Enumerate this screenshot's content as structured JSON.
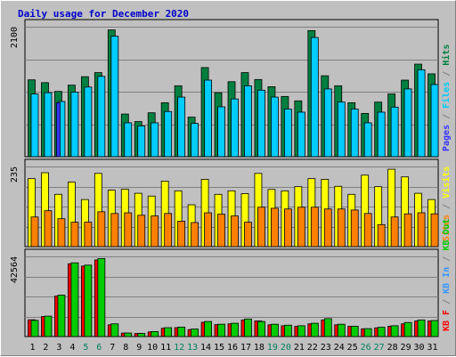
{
  "chart_data": {
    "type": "bar",
    "title": "Daily usage for December 2020",
    "categories": [
      "1",
      "2",
      "3",
      "4",
      "5",
      "6",
      "7",
      "8",
      "9",
      "10",
      "11",
      "12",
      "13",
      "14",
      "15",
      "16",
      "17",
      "18",
      "19",
      "20",
      "21",
      "22",
      "23",
      "24",
      "25",
      "26",
      "27",
      "28",
      "29",
      "30",
      "31"
    ],
    "weekend_days": [
      5,
      6,
      12,
      13,
      19,
      20,
      26,
      27
    ],
    "panels": [
      {
        "id": "hits-files-pages",
        "ymax_label": "2100",
        "ymax": 2100,
        "series": [
          {
            "name": "Hits",
            "color": "#008040",
            "values": [
              1225,
              1180,
              1040,
              1140,
              1275,
              1340,
              2020,
              680,
              560,
              700,
              860,
              1130,
              630,
              1420,
              1020,
              1195,
              1340,
              1230,
              1115,
              960,
              890,
              2010,
              1290,
              1130,
              860,
              690,
              870,
              1000,
              1220,
              1475,
              1320
            ]
          },
          {
            "name": "Files",
            "color": "#00ccff",
            "values": [
              1000,
              1020,
              880,
              1030,
              1110,
              1280,
              1920,
              540,
              490,
              540,
              720,
              950,
              530,
              1220,
              795,
              920,
              1130,
              1060,
              950,
              760,
              710,
              1900,
              1080,
              870,
              760,
              540,
              710,
              790,
              1080,
              1385,
              1150
            ]
          },
          {
            "name": "Pages",
            "color": "#3333ff",
            "values": [
              0,
              0,
              860,
              0,
              0,
              0,
              0,
              0,
              0,
              0,
              0,
              0,
              0,
              0,
              0,
              0,
              0,
              0,
              0,
              0,
              0,
              0,
              0,
              0,
              0,
              0,
              0,
              0,
              0,
              0,
              0
            ]
          }
        ],
        "side_labels": [
          "Pages",
          "Files",
          "Hits"
        ]
      },
      {
        "id": "visits-sites",
        "ymax_label": "235",
        "ymax": 235,
        "series": [
          {
            "name": "Visits",
            "color": "#ffff00",
            "values": [
              195,
              212,
              150,
              185,
              135,
              210,
              162,
              165,
              153,
              145,
              188,
              160,
              120,
              193,
              150,
              160,
              152,
              210,
              164,
              160,
              172,
              195,
              193,
              173,
              150,
              205,
              172,
              222,
              200,
              153,
              135
            ]
          },
          {
            "name": "Sites",
            "color": "#ff8000",
            "values": [
              85,
              103,
              80,
              70,
              70,
              100,
              95,
              97,
              90,
              88,
              95,
              73,
              69,
              97,
              93,
              88,
              70,
              113,
              110,
              108,
              113,
              113,
              108,
              108,
              105,
              95,
              63,
              85,
              94,
              97,
              94
            ]
          }
        ],
        "side_labels": [
          "Sites",
          "Visits"
        ]
      },
      {
        "id": "kbin-kbout-kbf",
        "ymax_label": "42564",
        "ymax": 42564,
        "series": [
          {
            "name": "KB F",
            "color": "#ff0000",
            "values": [
              8700,
              10400,
              21000,
              37800,
              36600,
              39800,
              6100,
              1800,
              1600,
              2400,
              4300,
              4600,
              3600,
              7400,
              6200,
              6600,
              8600,
              8100,
              6100,
              5600,
              5300,
              6600,
              8600,
              6100,
              5300,
              4000,
              4500,
              5300,
              6600,
              8100,
              8100
            ]
          },
          {
            "name": "KB In",
            "color": "#00cc00",
            "values": [
              8400,
              10600,
              21500,
              38300,
              37100,
              40500,
              6600,
              1800,
              1600,
              2600,
              4600,
              4900,
              3900,
              7800,
              6400,
              6900,
              9100,
              7800,
              6400,
              5900,
              5600,
              6900,
              9300,
              6400,
              5300,
              4100,
              4800,
              5600,
              7300,
              8600,
              8300
            ]
          }
        ],
        "side_labels": [
          "KB F",
          "KB In",
          "KB Out"
        ]
      }
    ]
  }
}
